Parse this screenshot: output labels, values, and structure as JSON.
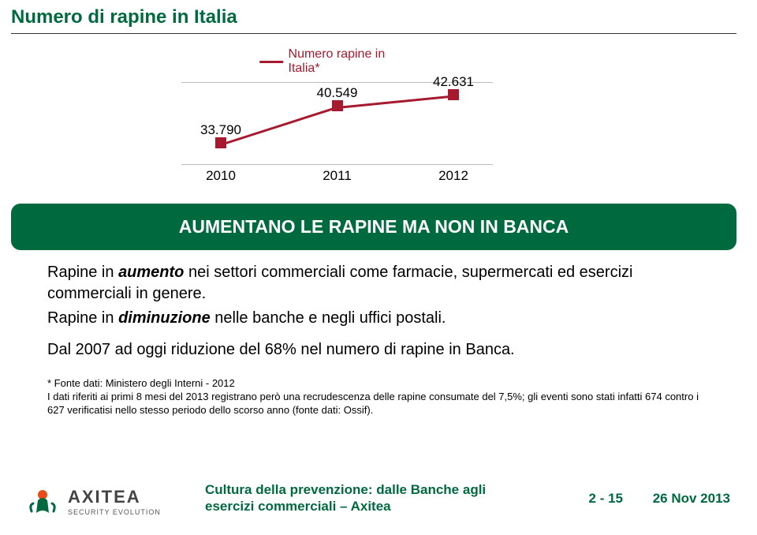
{
  "title": "Numero di rapine in Italia",
  "chart": {
    "type": "line",
    "legend_label": "Numero rapine in Italia*",
    "categories": [
      "2010",
      "2011",
      "2012"
    ],
    "values": [
      33790,
      40549,
      42631
    ],
    "value_labels": [
      "33.790",
      "40.549",
      "42.631"
    ],
    "ylim": [
      30000,
      45000
    ],
    "series_color": "#a6192e",
    "marker_color": "#a6192e",
    "marker_size": 14,
    "line_width": 3,
    "gridline_color": "#bbbbbb",
    "label_fontsize": 17,
    "legend_fontsize": 16,
    "background_color": "#ffffff"
  },
  "banner": {
    "text": "AUMENTANO LE RAPINE MA NON IN BANCA",
    "bg_color": "#006a3f",
    "text_color": "#ffffff",
    "fontsize": 23
  },
  "body": {
    "line1_pre": "Rapine in ",
    "line1_em": "aumento",
    "line1_post": " nei settori commerciali come farmacie, supermercati ed esercizi commerciali in genere.",
    "line2_pre": "Rapine in ",
    "line2_em": "diminuzione",
    "line2_post": " nelle banche e negli uffici postali."
  },
  "summary": "Dal 2007 ad oggi riduzione del 68% nel numero di rapine in Banca.",
  "footnote": {
    "l1": "* Fonte dati: Ministero degli Interni - 2012",
    "l2": "I dati riferiti ai primi 8 mesi del 2013 registrano però una recrudescenza delle rapine consumate del 7,5%; gli eventi sono stati infatti 674 contro i 627 verificatisi nello stesso periodo dello scorso anno (fonte dati: Ossif)."
  },
  "footer": {
    "logo_name": "AXITEA",
    "logo_tagline": "SECURITY EVOLUTION",
    "title": "Cultura della prevenzione: dalle Banche agli esercizi commerciali – Axitea",
    "page": "2 - 15",
    "date": "26 Nov 2013",
    "text_color": "#006a3f"
  }
}
